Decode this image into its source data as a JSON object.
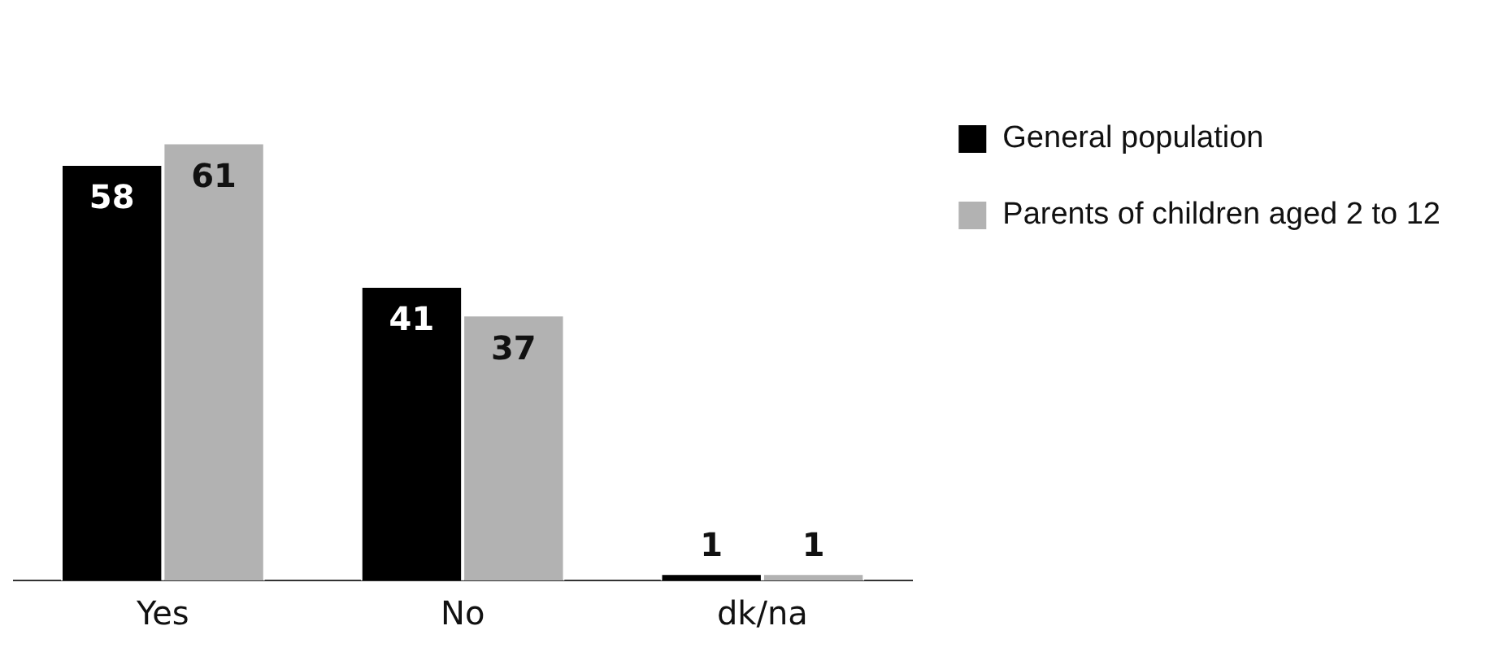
{
  "chart_data": {
    "type": "bar",
    "categories": [
      "Yes",
      "No",
      "dk/na"
    ],
    "series": [
      {
        "name": "General population",
        "color": "#000000",
        "values": [
          58,
          41,
          1
        ]
      },
      {
        "name": "Parents of children aged 2 to 12",
        "color": "#b2b2b2",
        "values": [
          61,
          37,
          1
        ]
      }
    ],
    "data_labels": true,
    "legend": "top right",
    "grid": false
  }
}
